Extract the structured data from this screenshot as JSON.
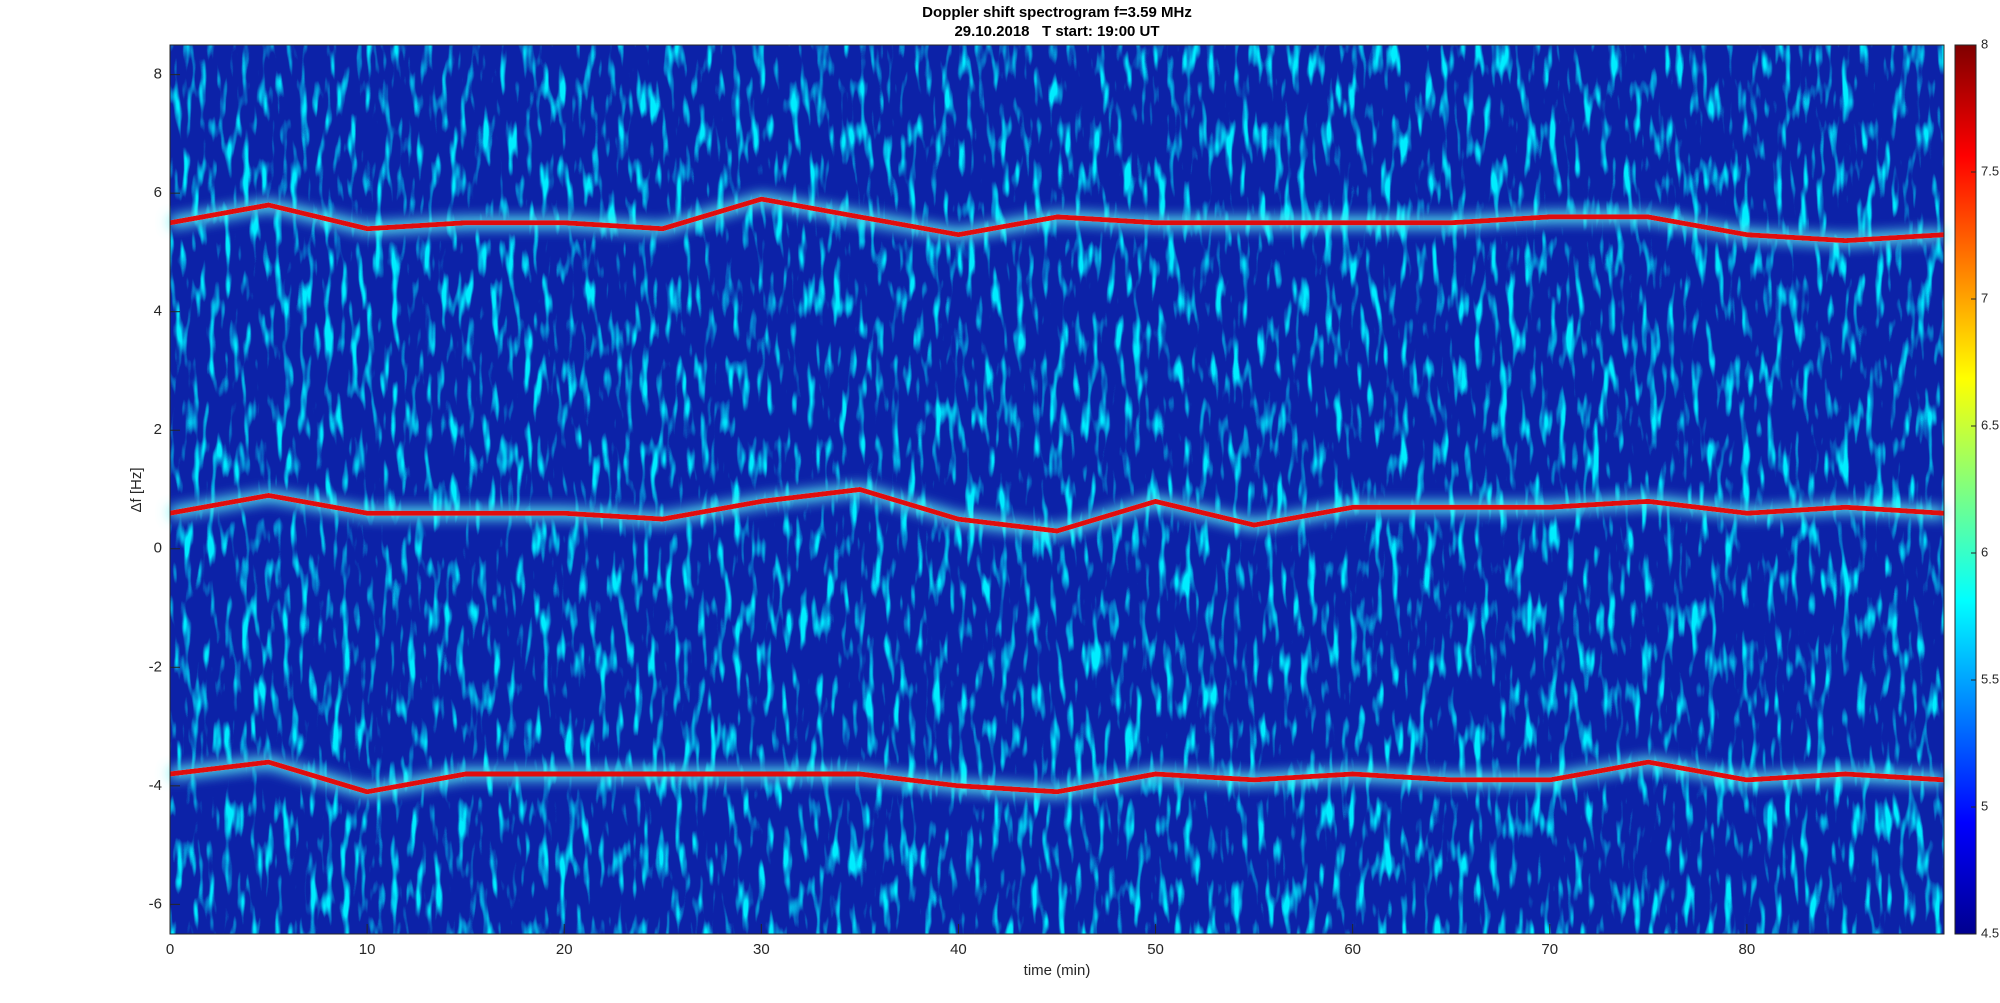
{
  "chart_data": {
    "type": "spectrogram",
    "title": "Doppler shift spectrogram f=3.59 MHz",
    "subtitle": "29.10.2018   T start: 19:00 UT",
    "x_label": "time (min)",
    "y_label": "Δf [Hz]",
    "x": [
      0,
      5,
      10,
      15,
      20,
      25,
      30,
      35,
      40,
      45,
      50,
      55,
      60,
      65,
      70,
      75,
      80,
      85,
      90
    ],
    "series": [
      {
        "color": "#e01010",
        "values": [
          5.5,
          5.8,
          5.4,
          5.5,
          5.5,
          5.4,
          5.9,
          5.6,
          5.3,
          5.6,
          5.5,
          5.5,
          5.5,
          5.5,
          5.6,
          5.6,
          5.3,
          5.2,
          5.3
        ]
      },
      {
        "color": "#e01010",
        "values": [
          0.6,
          0.9,
          0.6,
          0.6,
          0.6,
          0.5,
          0.8,
          1.0,
          0.5,
          0.3,
          0.8,
          0.4,
          0.7,
          0.7,
          0.7,
          0.8,
          0.6,
          0.7,
          0.6
        ]
      },
      {
        "color": "#e01010",
        "values": [
          -3.8,
          -3.6,
          -4.1,
          -3.8,
          -3.8,
          -3.8,
          -3.8,
          -3.8,
          -4.0,
          -4.1,
          -3.8,
          -3.9,
          -3.8,
          -3.9,
          -3.9,
          -3.6,
          -3.9,
          -3.8,
          -3.9
        ]
      }
    ],
    "xlim": [
      0,
      90
    ],
    "xticks": [
      0,
      10,
      20,
      30,
      40,
      50,
      60,
      70,
      80
    ],
    "ylim": [
      -6.5,
      8.5
    ],
    "yticks": [
      -6,
      -4,
      -2,
      0,
      2,
      4,
      6,
      8
    ],
    "colorbar": {
      "colormap": "jet",
      "lim": [
        4.5,
        8
      ],
      "ticks": [
        4.5,
        5,
        5.5,
        6,
        6.5,
        7,
        7.5,
        8
      ]
    }
  }
}
